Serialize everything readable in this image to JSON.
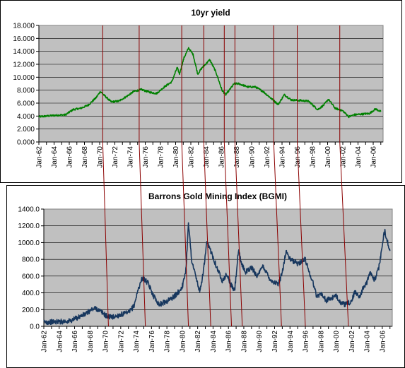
{
  "chart_data": [
    {
      "type": "line",
      "title": "10yr yield",
      "ylim": [
        0,
        18
      ],
      "yticks": [
        "0.000",
        "2.000",
        "4.000",
        "6.000",
        "8.000",
        "10.000",
        "12.000",
        "14.000",
        "16.000",
        "18.000"
      ],
      "xlim": [
        1962,
        2007.3
      ],
      "xticks": [
        "Jan-62",
        "Jan-64",
        "Jan-66",
        "Jan-68",
        "Jan-70",
        "Jan-72",
        "Jan-74",
        "Jan-76",
        "Jan-78",
        "Jan-80",
        "Jan-82",
        "Jan-84",
        "Jan-86",
        "Jan-88",
        "Jan-90",
        "Jan-92",
        "Jan-94",
        "Jan-96",
        "Jan-98",
        "Jan-00",
        "Jan-02",
        "Jan-04",
        "Jan-06"
      ],
      "grid": true,
      "legend": "none",
      "series": [
        {
          "color": "#008000",
          "x": [
            1962,
            1964,
            1965.5,
            1966.5,
            1967.5,
            1968.5,
            1969.5,
            1970.1,
            1970.6,
            1971.5,
            1972.5,
            1973.5,
            1974.5,
            1975.5,
            1976.5,
            1977.5,
            1978.5,
            1979.5,
            1980.2,
            1980.5,
            1981.1,
            1981.7,
            1982.3,
            1982.9,
            1983.5,
            1984.5,
            1985.3,
            1986.1,
            1986.6,
            1987.7,
            1988.3,
            1989.5,
            1990.5,
            1991.5,
            1992.5,
            1993.5,
            1994.3,
            1995.2,
            1996.5,
            1997.5,
            1998.7,
            1999.5,
            2000.1,
            2001.0,
            2002.0,
            2002.8,
            2003.5,
            2004.5,
            2005.5,
            2006.3,
            2007.0
          ],
          "y": [
            3.9,
            4.1,
            4.2,
            5.0,
            5.2,
            5.7,
            6.8,
            7.8,
            7.2,
            6.2,
            6.3,
            7.0,
            7.8,
            8.1,
            7.7,
            7.5,
            8.5,
            9.3,
            11.5,
            10.5,
            13.0,
            14.5,
            13.5,
            10.5,
            11.5,
            12.7,
            10.8,
            8.0,
            7.3,
            9.0,
            9.0,
            8.5,
            8.5,
            7.8,
            6.8,
            5.8,
            7.3,
            6.5,
            6.4,
            6.3,
            5.0,
            5.7,
            6.6,
            5.2,
            4.8,
            3.9,
            4.2,
            4.3,
            4.4,
            5.1,
            4.7
          ]
        }
      ]
    },
    {
      "type": "line",
      "title": "Barrons Gold Mining Index (BGMI)",
      "ylim": [
        0,
        1400
      ],
      "yticks": [
        "0.0",
        "200.0",
        "400.0",
        "600.0",
        "800.0",
        "1000.0",
        "1200.0",
        "1400.0"
      ],
      "xlim": [
        1962,
        2007.3
      ],
      "xticks": [
        "Jan-62",
        "Jan-64",
        "Jan-66",
        "Jan-68",
        "Jan-70",
        "Jan-72",
        "Jan-74",
        "Jan-76",
        "Jan-78",
        "Jan-80",
        "Jan-82",
        "Jan-84",
        "Jan-86",
        "Jan-88",
        "Jan-90",
        "Jan-92",
        "Jan-94",
        "Jan-96",
        "Jan-98",
        "Jan-00",
        "Jan-02",
        "Jan-04",
        "Jan-06"
      ],
      "grid": true,
      "legend": "none",
      "series": [
        {
          "color": "#17375e",
          "x": [
            1962,
            1964,
            1965.5,
            1966.5,
            1967.5,
            1968.2,
            1968.8,
            1969.5,
            1970.2,
            1971.0,
            1972.0,
            1973.0,
            1973.7,
            1974.3,
            1974.8,
            1975.5,
            1976.3,
            1977.0,
            1978.0,
            1979.0,
            1979.7,
            1980.1,
            1980.5,
            1980.8,
            1981.2,
            1981.6,
            1982.3,
            1982.8,
            1983.2,
            1983.8,
            1984.5,
            1985.2,
            1985.8,
            1986.3,
            1986.8,
            1987.3,
            1987.7,
            1988.2,
            1989.0,
            1989.8,
            1990.5,
            1991.5,
            1992.5,
            1993.0,
            1993.5,
            1994.0,
            1995.0,
            1996.0,
            1996.5,
            1997.0,
            1997.5,
            1998.0,
            1998.7,
            1999.5,
            2000.1,
            2000.7,
            2001.3,
            2002.0,
            2002.5,
            2003.0,
            2003.5,
            2004.0,
            2004.5,
            2005.0,
            2005.5,
            2006.0,
            2006.3,
            2006.7,
            2007.0
          ],
          "y": [
            50,
            55,
            65,
            110,
            150,
            200,
            215,
            170,
            120,
            110,
            140,
            160,
            240,
            450,
            580,
            520,
            360,
            260,
            300,
            360,
            430,
            500,
            700,
            1250,
            800,
            650,
            400,
            700,
            1000,
            880,
            700,
            550,
            620,
            500,
            420,
            900,
            750,
            650,
            700,
            600,
            720,
            550,
            500,
            650,
            900,
            800,
            750,
            800,
            650,
            520,
            350,
            400,
            310,
            340,
            360,
            270,
            260,
            300,
            420,
            350,
            450,
            530,
            650,
            550,
            680,
            950,
            1150,
            1000,
            900
          ]
        }
      ]
    }
  ],
  "events": [
    1970.4,
    1975.2,
    1980.8,
    1983.7,
    1986.4,
    1987.8,
    1992.9,
    1996.0,
    2001.6
  ]
}
